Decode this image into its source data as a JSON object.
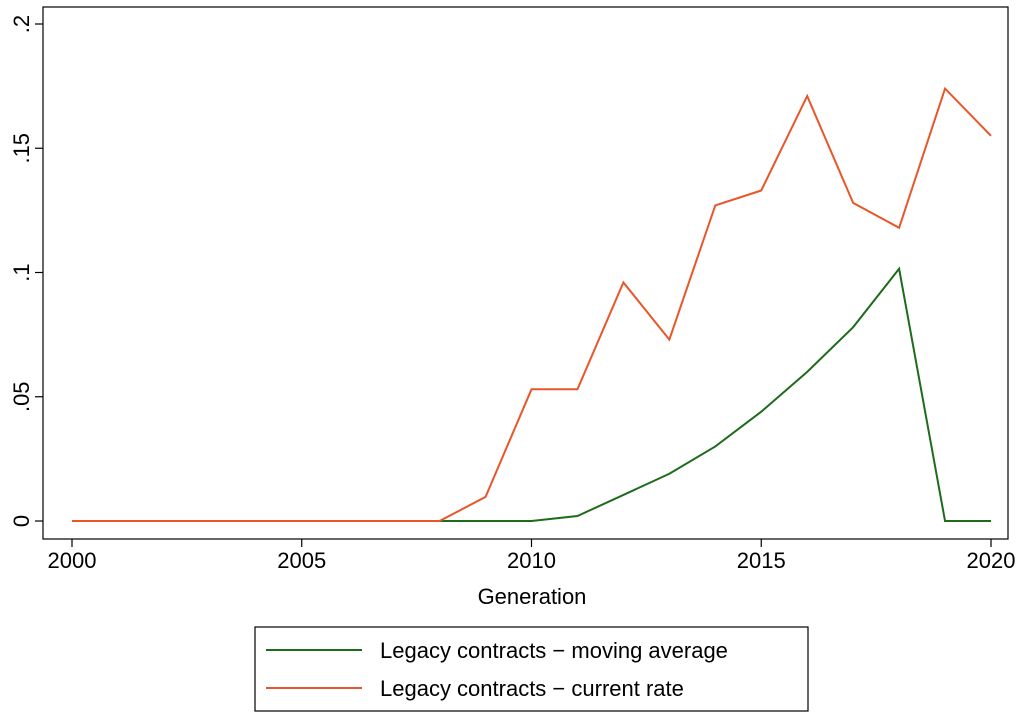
{
  "chart_data": {
    "type": "line",
    "x_label": "Generation",
    "x": [
      2000,
      2001,
      2002,
      2003,
      2004,
      2005,
      2006,
      2007,
      2008,
      2009,
      2010,
      2011,
      2012,
      2013,
      2014,
      2015,
      2016,
      2017,
      2018,
      2019,
      2020
    ],
    "series": [
      {
        "name": "Legacy contracts − moving average",
        "color": "#1e6b1c",
        "values": [
          0,
          0,
          0,
          0,
          0,
          0,
          0,
          0,
          0,
          0,
          0,
          0.002,
          0.0105,
          0.019,
          0.03,
          0.044,
          0.06,
          0.078,
          0.1015,
          0,
          0
        ]
      },
      {
        "name": "Legacy contracts − current rate",
        "color": "#e8562a",
        "values": [
          0,
          0,
          0,
          0,
          0,
          0,
          0,
          0,
          0,
          0.0097,
          0.053,
          0.053,
          0.096,
          0.073,
          0.127,
          0.133,
          0.171,
          0.128,
          0.118,
          0.174,
          0.155
        ]
      }
    ],
    "xlim": [
      2000,
      2020
    ],
    "xticks": [
      2000,
      2005,
      2010,
      2015,
      2020
    ],
    "ylim": [
      0,
      0.2
    ],
    "yticks": [
      0,
      {
        "value": 0.05,
        "label": ".05"
      },
      {
        "value": 0.1,
        "label": ".1"
      },
      {
        "value": 0.15,
        "label": ".15"
      },
      {
        "value": 0.2,
        "label": ".2"
      }
    ],
    "legend": "bottom"
  }
}
